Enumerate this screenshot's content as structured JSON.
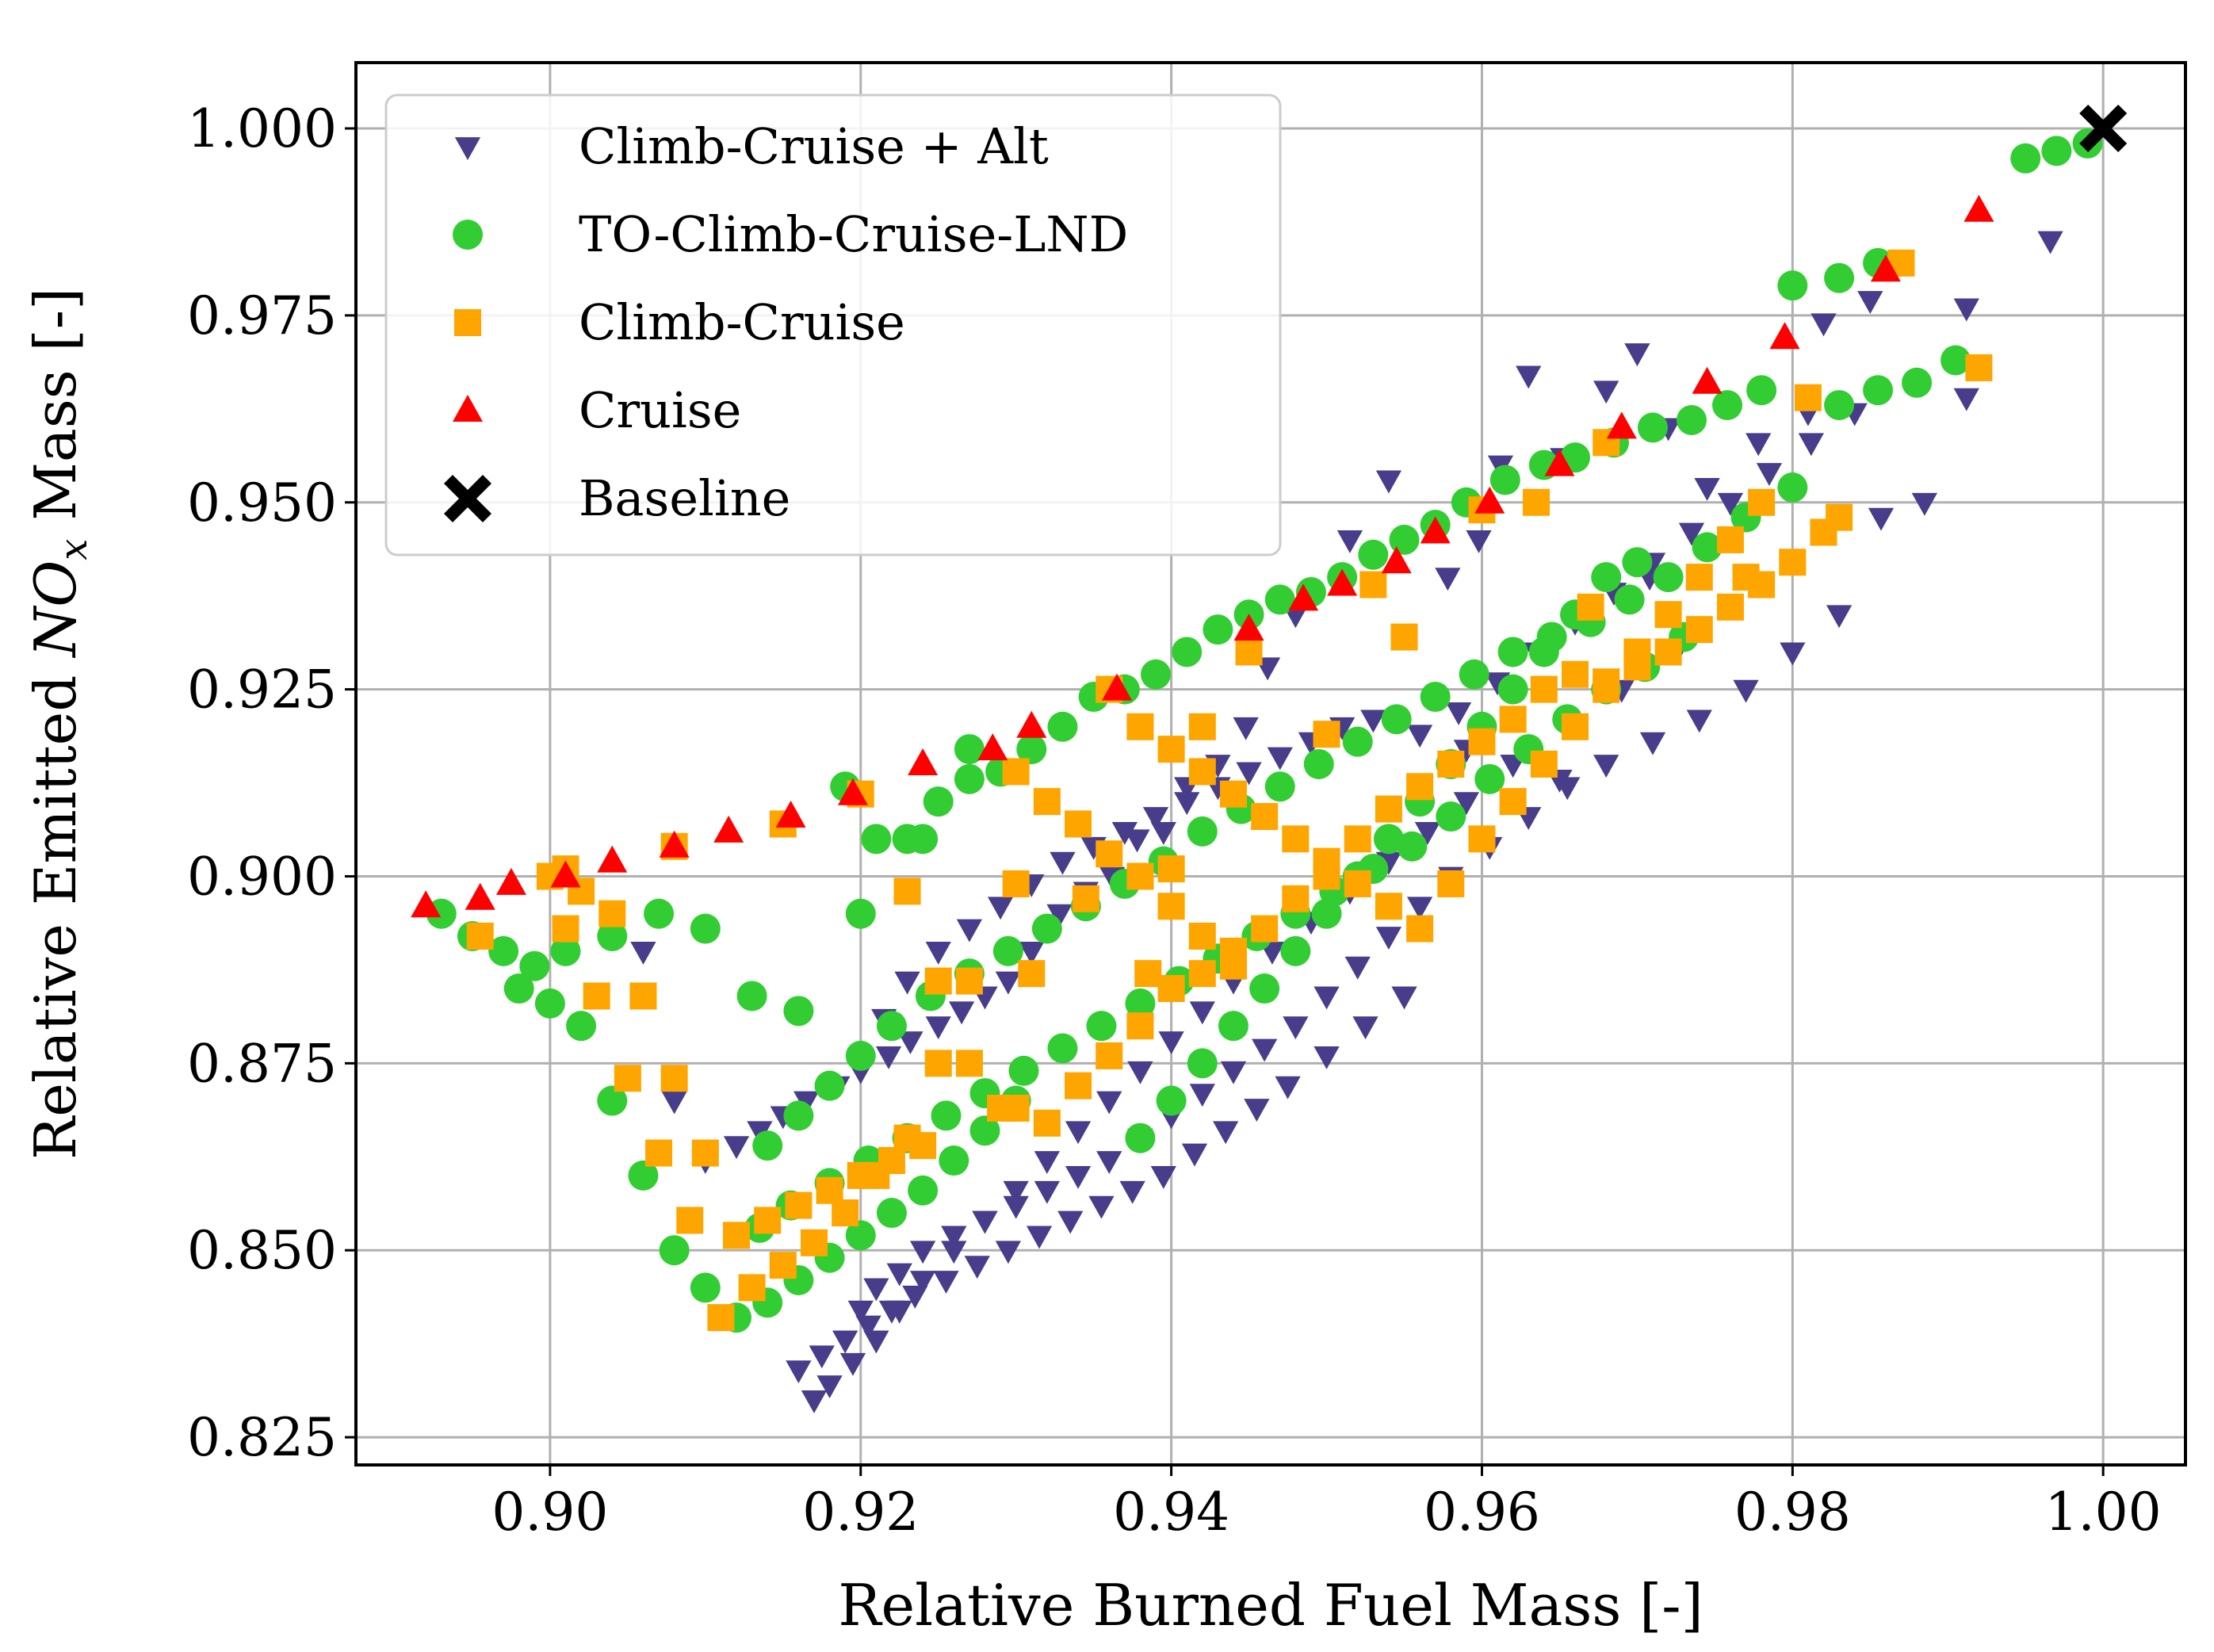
{
  "chart_data": {
    "type": "scatter",
    "title": "",
    "xlabel": "Relative Burned Fuel Mass [-]",
    "ylabel": {
      "prefix": "Relative Emitted ",
      "symbol": "NO",
      "subscript": "x",
      "suffix": " Mass [-]"
    },
    "xlim": [
      0.8875,
      1.0053
    ],
    "ylim": [
      0.8213,
      1.0088
    ],
    "xticks": [
      0.9,
      0.92,
      0.94,
      0.96,
      0.98,
      1.0
    ],
    "xtick_labels": [
      "0.90",
      "0.92",
      "0.94",
      "0.96",
      "0.98",
      "1.00"
    ],
    "yticks": [
      0.825,
      0.85,
      0.875,
      0.9,
      0.925,
      0.95,
      0.975,
      1.0
    ],
    "ytick_labels": [
      "0.825",
      "0.850",
      "0.875",
      "0.900",
      "0.925",
      "0.950",
      "0.975",
      "1.000"
    ],
    "grid": true,
    "legend": "upper-left",
    "series": [
      {
        "name": "Climb-Cruise + Alt",
        "marker": "triangle-down",
        "color": "#483d8b",
        "x": [
          0.9966,
          0.9912,
          0.9912,
          0.9885,
          0.9857,
          0.985,
          0.982,
          0.981,
          0.9778,
          0.9745,
          0.972,
          0.97,
          0.9708,
          0.968,
          0.9652,
          0.963,
          0.9612,
          0.9598,
          0.9578,
          0.955,
          0.954,
          0.9515,
          0.948,
          0.9462,
          0.9448,
          0.943,
          0.941,
          0.9395,
          0.9378,
          0.9362,
          0.9345,
          0.9328,
          0.931,
          0.9295,
          0.928,
          0.9265,
          0.925,
          0.9232,
          0.9218,
          0.92,
          0.9185,
          0.9165,
          0.915,
          0.9135,
          0.912,
          0.91,
          0.908,
          0.906,
          0.9725,
          0.969,
          0.9655,
          0.962,
          0.959,
          0.9565,
          0.954,
          0.9515,
          0.949,
          0.9465,
          0.944,
          0.942,
          0.94,
          0.938,
          0.936,
          0.934,
          0.932,
          0.93,
          0.928,
          0.926,
          0.924,
          0.9225,
          0.921,
          0.9195,
          0.918,
          0.917,
          0.955,
          0.9525,
          0.95,
          0.9475,
          0.9455,
          0.9435,
          0.9415,
          0.9395,
          0.9375,
          0.9355,
          0.9335,
          0.9315,
          0.9295,
          0.9275,
          0.9255,
          0.9235,
          0.922,
          0.9205,
          0.919,
          0.9175,
          0.916,
          0.9655,
          0.963,
          0.9605,
          0.958,
          0.956,
          0.954,
          0.952,
          0.95,
          0.948,
          0.946,
          0.944,
          0.942,
          0.94,
          0.938,
          0.936,
          0.934,
          0.932,
          0.93,
          0.928,
          0.926,
          0.924,
          0.9225,
          0.921,
          0.92,
          0.9215,
          0.923,
          0.925,
          0.927,
          0.929,
          0.931,
          0.933,
          0.935,
          0.937,
          0.939,
          0.941,
          0.943,
          0.945,
          0.947,
          0.949,
          0.951,
          0.953,
          0.956,
          0.959,
          0.962,
          0.965,
          0.968,
          0.971,
          0.974,
          0.977,
          0.98,
          0.983,
          0.984,
          0.9812,
          0.9785,
          0.976,
          0.9735,
          0.971,
          0.9685,
          0.966,
          0.9635,
          0.961,
          0.9585
        ],
        "y": [
          0.985,
          0.976,
          0.964,
          0.95,
          0.948,
          0.977,
          0.974,
          0.962,
          0.958,
          0.952,
          0.96,
          0.97,
          0.94,
          0.965,
          0.956,
          0.967,
          0.955,
          0.945,
          0.94,
          0.932,
          0.953,
          0.945,
          0.935,
          0.928,
          0.92,
          0.915,
          0.912,
          0.906,
          0.905,
          0.9,
          0.898,
          0.895,
          0.89,
          0.886,
          0.884,
          0.882,
          0.88,
          0.878,
          0.876,
          0.874,
          0.872,
          0.87,
          0.868,
          0.866,
          0.864,
          0.862,
          0.87,
          0.89,
          0.93,
          0.925,
          0.92,
          0.915,
          0.91,
          0.906,
          0.902,
          0.898,
          0.894,
          0.89,
          0.886,
          0.882,
          0.878,
          0.874,
          0.87,
          0.866,
          0.862,
          0.858,
          0.854,
          0.85,
          0.846,
          0.842,
          0.838,
          0.835,
          0.832,
          0.83,
          0.884,
          0.88,
          0.876,
          0.872,
          0.869,
          0.866,
          0.863,
          0.86,
          0.858,
          0.856,
          0.854,
          0.852,
          0.85,
          0.848,
          0.846,
          0.844,
          0.842,
          0.84,
          0.838,
          0.836,
          0.834,
          0.912,
          0.908,
          0.904,
          0.9,
          0.896,
          0.892,
          0.888,
          0.884,
          0.88,
          0.877,
          0.874,
          0.871,
          0.868,
          0.865,
          0.862,
          0.86,
          0.858,
          0.856,
          0.854,
          0.852,
          0.85,
          0.847,
          0.845,
          0.842,
          0.881,
          0.886,
          0.89,
          0.893,
          0.896,
          0.899,
          0.902,
          0.904,
          0.906,
          0.908,
          0.91,
          0.912,
          0.914,
          0.916,
          0.918,
          0.92,
          0.921,
          0.919,
          0.917,
          0.915,
          0.913,
          0.915,
          0.918,
          0.921,
          0.925,
          0.93,
          0.935,
          0.962,
          0.958,
          0.954,
          0.95,
          0.946,
          0.942,
          0.938,
          0.934,
          0.93,
          0.926,
          0.922
        ]
      },
      {
        "name": "TO-Climb-Cruise-LND",
        "marker": "circle",
        "color": "#32cd32",
        "x": [
          0.999,
          0.997,
          0.995,
          0.9855,
          0.983,
          0.98,
          0.978,
          0.9758,
          0.9735,
          0.971,
          0.9685,
          0.966,
          0.964,
          0.9615,
          0.959,
          0.957,
          0.955,
          0.953,
          0.951,
          0.949,
          0.947,
          0.945,
          0.943,
          0.941,
          0.939,
          0.937,
          0.935,
          0.933,
          0.931,
          0.929,
          0.927,
          0.925,
          0.923,
          0.921,
          0.919,
          0.893,
          0.895,
          0.897,
          0.899,
          0.901,
          0.904,
          0.907,
          0.91,
          0.913,
          0.916,
          0.92,
          0.924,
          0.927,
          0.9905,
          0.988,
          0.9855,
          0.983,
          0.98,
          0.977,
          0.9745,
          0.972,
          0.9695,
          0.967,
          0.9645,
          0.962,
          0.9595,
          0.957,
          0.9545,
          0.952,
          0.9495,
          0.947,
          0.9445,
          0.942,
          0.9395,
          0.937,
          0.9345,
          0.932,
          0.9295,
          0.927,
          0.9245,
          0.922,
          0.92,
          0.918,
          0.916,
          0.914,
          0.973,
          0.9705,
          0.968,
          0.9655,
          0.963,
          0.9605,
          0.958,
          0.9555,
          0.953,
          0.9505,
          0.948,
          0.9455,
          0.943,
          0.9405,
          0.938,
          0.9355,
          0.933,
          0.9305,
          0.928,
          0.9255,
          0.923,
          0.9205,
          0.918,
          0.9155,
          0.9135,
          0.938,
          0.94,
          0.942,
          0.944,
          0.946,
          0.948,
          0.95,
          0.952,
          0.954,
          0.956,
          0.958,
          0.96,
          0.962,
          0.964,
          0.966,
          0.968,
          0.97,
          0.93,
          0.928,
          0.926,
          0.924,
          0.922,
          0.92,
          0.918,
          0.916,
          0.914,
          0.912,
          0.91,
          0.908,
          0.906,
          0.904,
          0.902,
          0.9,
          0.898
        ],
        "y": [
          0.998,
          0.997,
          0.996,
          0.982,
          0.98,
          0.979,
          0.965,
          0.963,
          0.961,
          0.96,
          0.958,
          0.956,
          0.955,
          0.953,
          0.95,
          0.947,
          0.945,
          0.943,
          0.94,
          0.938,
          0.937,
          0.935,
          0.933,
          0.93,
          0.927,
          0.925,
          0.924,
          0.92,
          0.917,
          0.914,
          0.913,
          0.91,
          0.905,
          0.905,
          0.912,
          0.895,
          0.892,
          0.89,
          0.888,
          0.89,
          0.892,
          0.895,
          0.893,
          0.884,
          0.882,
          0.895,
          0.905,
          0.917,
          0.969,
          0.966,
          0.965,
          0.963,
          0.952,
          0.948,
          0.944,
          0.94,
          0.937,
          0.934,
          0.932,
          0.93,
          0.927,
          0.924,
          0.921,
          0.918,
          0.915,
          0.912,
          0.909,
          0.906,
          0.902,
          0.899,
          0.896,
          0.893,
          0.89,
          0.887,
          0.884,
          0.88,
          0.876,
          0.872,
          0.868,
          0.864,
          0.932,
          0.928,
          0.925,
          0.921,
          0.917,
          0.913,
          0.908,
          0.904,
          0.901,
          0.898,
          0.895,
          0.892,
          0.889,
          0.886,
          0.883,
          0.88,
          0.877,
          0.874,
          0.871,
          0.868,
          0.865,
          0.862,
          0.859,
          0.856,
          0.853,
          0.865,
          0.87,
          0.875,
          0.88,
          0.885,
          0.89,
          0.895,
          0.9,
          0.905,
          0.91,
          0.915,
          0.92,
          0.925,
          0.93,
          0.935,
          0.94,
          0.942,
          0.87,
          0.866,
          0.862,
          0.858,
          0.855,
          0.852,
          0.849,
          0.846,
          0.843,
          0.841,
          0.845,
          0.85,
          0.86,
          0.87,
          0.88,
          0.883,
          0.885
        ]
      },
      {
        "name": "Climb-Cruise",
        "marker": "square",
        "color": "#ffa500",
        "x": [
          0.992,
          0.987,
          0.983,
          0.981,
          0.977,
          0.968,
          0.967,
          0.9635,
          0.96,
          0.955,
          0.953,
          0.95,
          0.945,
          0.942,
          0.94,
          0.9385,
          0.936,
          0.9345,
          0.931,
          0.93,
          0.929,
          0.927,
          0.925,
          0.923,
          0.921,
          0.919,
          0.917,
          0.915,
          0.913,
          0.911,
          0.909,
          0.907,
          0.905,
          0.903,
          0.901,
          0.8955,
          0.901,
          0.908,
          0.915,
          0.92,
          0.923,
          0.925,
          0.927,
          0.93,
          0.932,
          0.934,
          0.936,
          0.938,
          0.94,
          0.942,
          0.944,
          0.946,
          0.948,
          0.95,
          0.952,
          0.954,
          0.956,
          0.958,
          0.96,
          0.962,
          0.964,
          0.966,
          0.968,
          0.97,
          0.972,
          0.974,
          0.976,
          0.978,
          0.98,
          0.982,
          0.93,
          0.932,
          0.934,
          0.936,
          0.938,
          0.94,
          0.942,
          0.944,
          0.924,
          0.922,
          0.92,
          0.918,
          0.916,
          0.914,
          0.912,
          0.91,
          0.908,
          0.906,
          0.904,
          0.902,
          0.9,
          0.938,
          0.94,
          0.942,
          0.944,
          0.946,
          0.948,
          0.95,
          0.952,
          0.954,
          0.956,
          0.958,
          0.96,
          0.962,
          0.964,
          0.966,
          0.968,
          0.97,
          0.972,
          0.974,
          0.976,
          0.978
        ],
        "y": [
          0.968,
          0.982,
          0.948,
          0.964,
          0.94,
          0.958,
          0.936,
          0.95,
          0.949,
          0.932,
          0.939,
          0.919,
          0.93,
          0.92,
          0.901,
          0.887,
          0.925,
          0.897,
          0.887,
          0.899,
          0.869,
          0.886,
          0.875,
          0.865,
          0.86,
          0.855,
          0.851,
          0.848,
          0.845,
          0.841,
          0.854,
          0.863,
          0.873,
          0.884,
          0.893,
          0.892,
          0.901,
          0.904,
          0.907,
          0.911,
          0.898,
          0.886,
          0.875,
          0.869,
          0.867,
          0.872,
          0.876,
          0.88,
          0.885,
          0.887,
          0.89,
          0.893,
          0.897,
          0.9,
          0.905,
          0.909,
          0.912,
          0.915,
          0.918,
          0.921,
          0.925,
          0.927,
          0.926,
          0.928,
          0.93,
          0.933,
          0.936,
          0.939,
          0.942,
          0.946,
          0.914,
          0.91,
          0.907,
          0.903,
          0.9,
          0.896,
          0.892,
          0.888,
          0.864,
          0.862,
          0.86,
          0.858,
          0.856,
          0.854,
          0.852,
          0.863,
          0.873,
          0.884,
          0.895,
          0.898,
          0.9,
          0.92,
          0.917,
          0.914,
          0.911,
          0.908,
          0.905,
          0.902,
          0.899,
          0.896,
          0.893,
          0.899,
          0.905,
          0.91,
          0.915,
          0.92,
          0.925,
          0.93,
          0.935,
          0.94,
          0.945,
          0.95
        ]
      },
      {
        "name": "Cruise",
        "marker": "triangle-up",
        "color": "#ff0000",
        "x": [
          0.892,
          0.8955,
          0.8975,
          0.901,
          0.904,
          0.908,
          0.9115,
          0.9155,
          0.9195,
          0.924,
          0.9285,
          0.931,
          0.9365,
          0.945,
          0.9485,
          0.951,
          0.9545,
          0.957,
          0.9605,
          0.965,
          0.969,
          0.9745,
          0.9795,
          0.986,
          0.992
        ],
        "y": [
          0.896,
          0.897,
          0.899,
          0.9,
          0.902,
          0.904,
          0.906,
          0.908,
          0.911,
          0.915,
          0.917,
          0.92,
          0.925,
          0.933,
          0.937,
          0.939,
          0.942,
          0.946,
          0.95,
          0.955,
          0.96,
          0.966,
          0.972,
          0.981,
          0.989
        ]
      },
      {
        "name": "Baseline",
        "marker": "x",
        "color": "#000000",
        "x": [
          1.0
        ],
        "y": [
          1.0
        ]
      }
    ]
  }
}
